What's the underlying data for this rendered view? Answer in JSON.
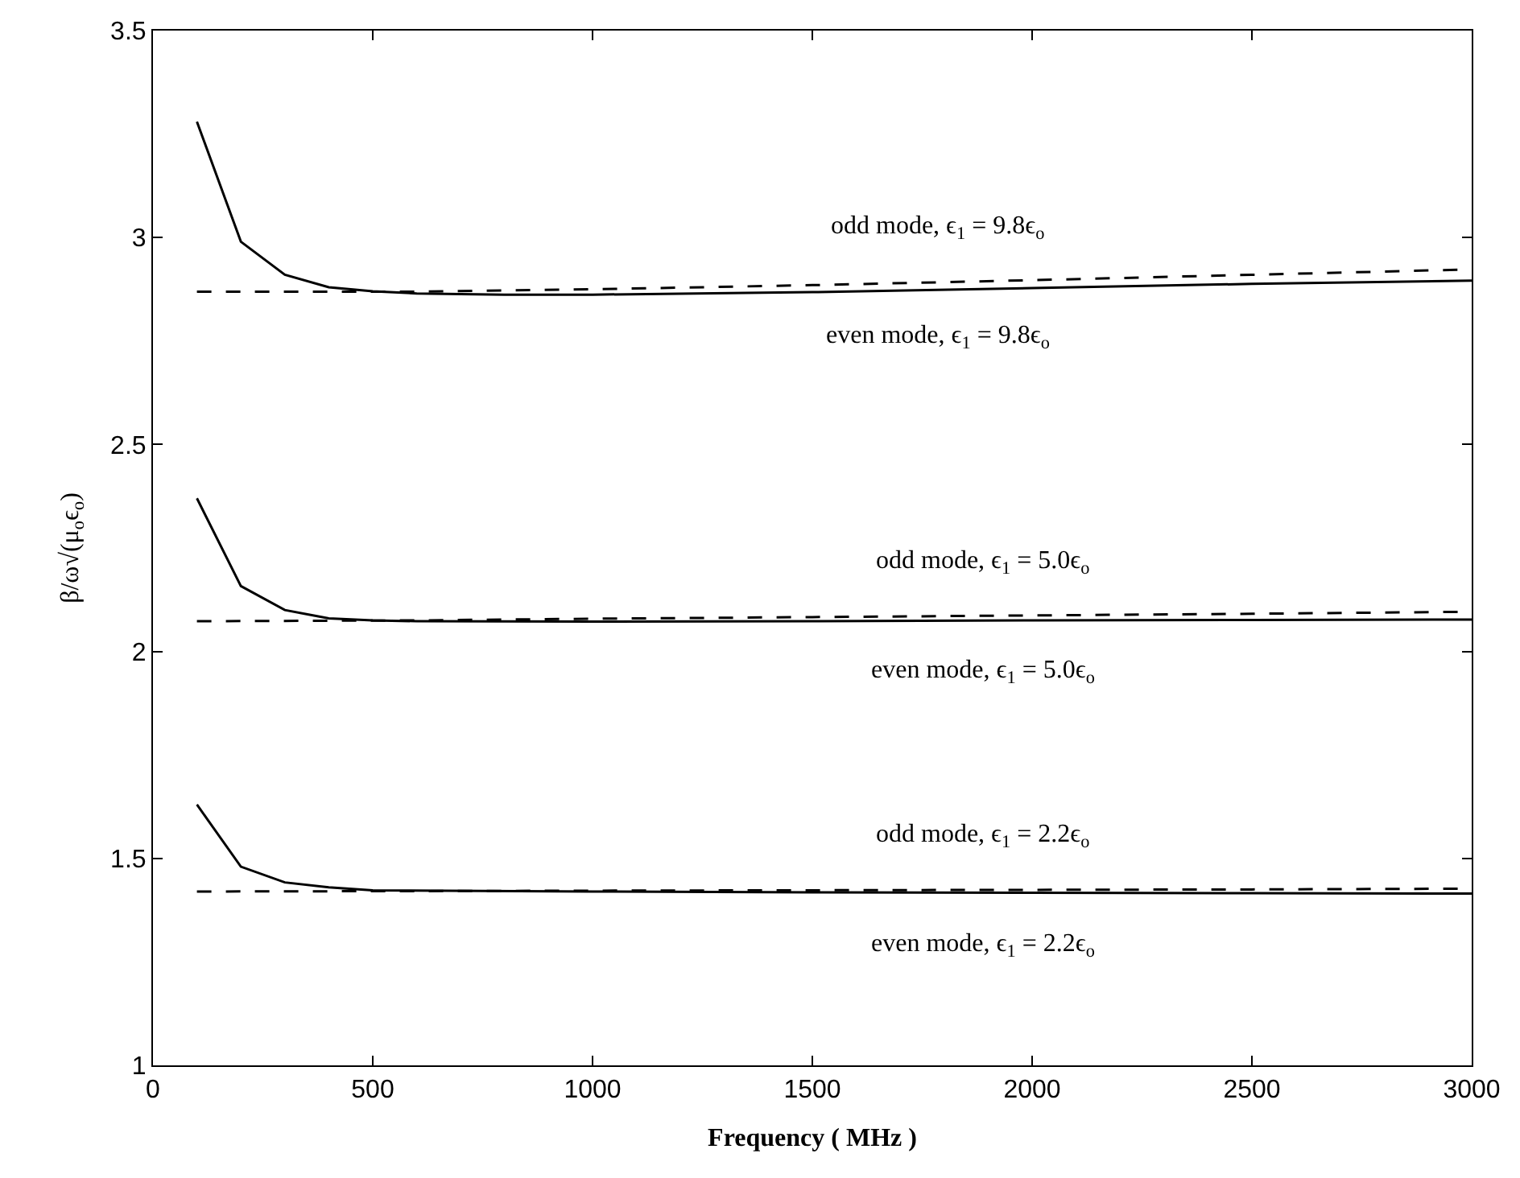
{
  "chart_data": {
    "type": "line",
    "xlabel": "Frequency ( MHz )",
    "ylabel": "β/ω√(μ$_{o}$ϵ$_{o}$)",
    "xlim": [
      0,
      3000
    ],
    "ylim": [
      1,
      3.5
    ],
    "xticks": [
      0,
      500,
      1000,
      1500,
      2000,
      2500,
      3000
    ],
    "yticks": [
      1,
      1.5,
      2,
      2.5,
      3,
      3.5
    ],
    "marker": "none",
    "series": [
      {
        "color": "#000000",
        "line_style": "solid",
        "x": [
          100,
          200,
          300,
          400,
          500,
          600,
          800,
          1000,
          1500,
          2000,
          2500,
          3000
        ],
        "values": [
          3.28,
          2.99,
          2.91,
          2.88,
          2.87,
          2.865,
          2.862,
          2.862,
          2.868,
          2.878,
          2.888,
          2.896
        ]
      },
      {
        "color": "#000000",
        "line_style": "dashed",
        "x": [
          100,
          600,
          1000,
          1500,
          2000,
          2500,
          3000
        ],
        "values": [
          2.869,
          2.869,
          2.875,
          2.885,
          2.897,
          2.91,
          2.923
        ]
      },
      {
        "color": "#000000",
        "line_style": "solid",
        "x": [
          100,
          200,
          300,
          400,
          500,
          600,
          1000,
          1500,
          2000,
          2500,
          3000
        ],
        "values": [
          2.37,
          2.158,
          2.1,
          2.08,
          2.075,
          2.073,
          2.072,
          2.073,
          2.075,
          2.076,
          2.077
        ]
      },
      {
        "color": "#000000",
        "line_style": "dashed",
        "x": [
          100,
          600,
          1000,
          1500,
          2000,
          2500,
          3000
        ],
        "values": [
          2.073,
          2.075,
          2.079,
          2.083,
          2.087,
          2.091,
          2.096
        ]
      },
      {
        "color": "#000000",
        "line_style": "solid",
        "x": [
          100,
          200,
          300,
          400,
          500,
          1000,
          1500,
          2000,
          2500,
          3000
        ],
        "values": [
          1.63,
          1.48,
          1.442,
          1.43,
          1.423,
          1.42,
          1.418,
          1.417,
          1.416,
          1.415
        ]
      },
      {
        "color": "#000000",
        "line_style": "dashed",
        "x": [
          100,
          600,
          1000,
          1500,
          2000,
          2500,
          3000
        ],
        "values": [
          1.42,
          1.421,
          1.422,
          1.423,
          1.424,
          1.425,
          1.427
        ]
      }
    ],
    "annotations": [
      "odd mode, ϵ$_{1}$ = 9.8ϵ$_{o}$",
      "even mode, ϵ$_{1}$ = 9.8ϵ$_{o}$",
      "odd mode, ϵ$_{1}$ = 5.0ϵ$_{o}$",
      "even mode, ϵ$_{1}$ = 5.0ϵ$_{o}$",
      "odd mode, ϵ$_{1}$ = 2.2ϵ$_{o}$",
      "even mode, ϵ$_{1}$ = 2.2ϵ$_{o}$"
    ]
  }
}
